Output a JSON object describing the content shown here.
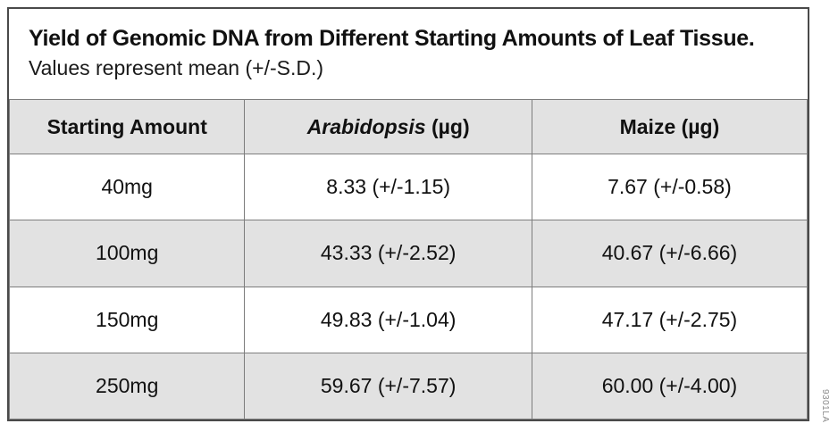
{
  "figure": {
    "title": "Yield of Genomic DNA from Different Starting Amounts of Leaf Tissue.",
    "subtitle": "Values represent mean (+/-S.D.)",
    "figure_id": "9301LA",
    "colors": {
      "row_shade": "#e2e2e2",
      "grid_line": "#7d7d7d",
      "frame_border": "#4a4a4a",
      "text": "#111111",
      "figure_id_text": "#8c8c8c",
      "background": "#ffffff"
    }
  },
  "table": {
    "columns": [
      {
        "label": "Starting Amount",
        "unit": "",
        "italic": false
      },
      {
        "label": "Arabidopsis",
        "unit": " (µg)",
        "italic": true
      },
      {
        "label": "Maize",
        "unit": " (µg)",
        "italic": false
      }
    ],
    "rows": [
      {
        "starting_amount": "40mg",
        "arabidopsis": "8.33 (+/-1.15)",
        "maize": "7.67 (+/-0.58)",
        "shaded": false
      },
      {
        "starting_amount": "100mg",
        "arabidopsis": "43.33 (+/-2.52)",
        "maize": "40.67 (+/-6.66)",
        "shaded": true
      },
      {
        "starting_amount": "150mg",
        "arabidopsis": "49.83 (+/-1.04)",
        "maize": "47.17 (+/-2.75)",
        "shaded": false
      },
      {
        "starting_amount": "250mg",
        "arabidopsis": "59.67 (+/-7.57)",
        "maize": "60.00 (+/-4.00)",
        "shaded": true
      }
    ]
  }
}
